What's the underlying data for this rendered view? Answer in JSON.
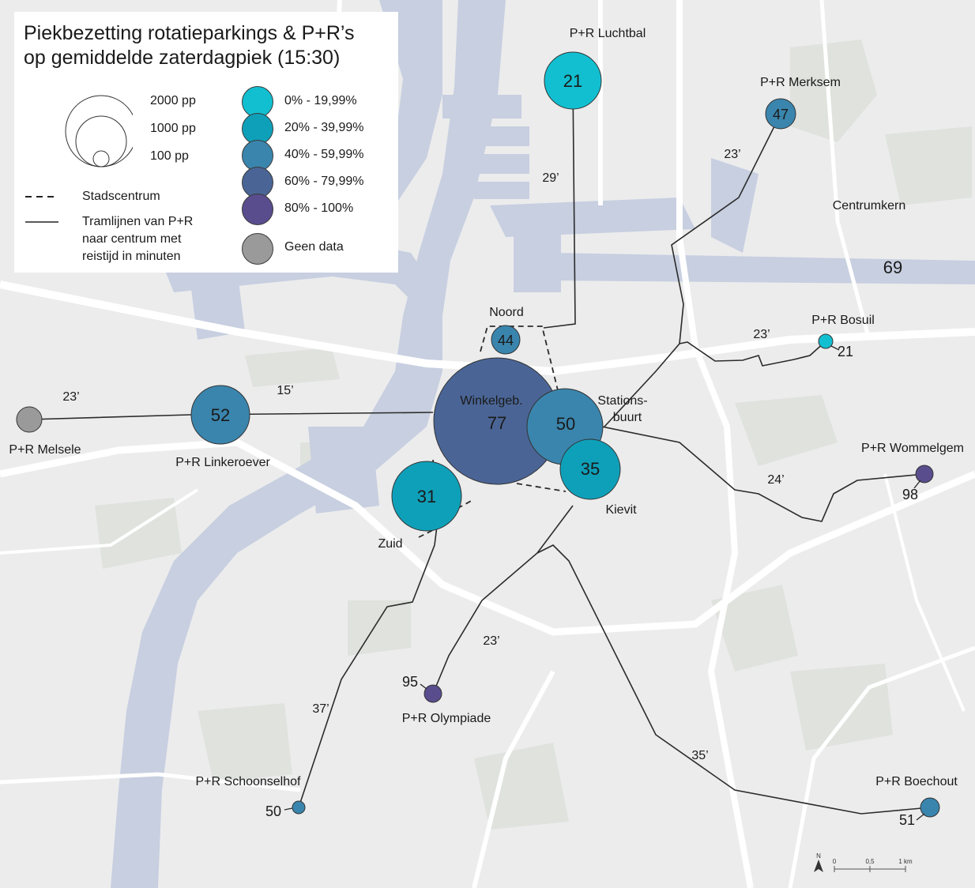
{
  "title": "Piekbezetting rotatieparkings & P+R’s op gemiddelde zaterdagpiek (15:30)",
  "title_line1": "Piekbezetting rotatieparkings & P+R’s",
  "title_line2": "op gemiddelde zaterdagpiek (15:30)",
  "legend": {
    "size_labels": [
      "2000 pp",
      "1000 pp",
      "100 pp"
    ],
    "classes": [
      {
        "label": "0% - 19,99%",
        "color": "#12bfd0"
      },
      {
        "label": "20% - 39,99%",
        "color": "#0fa0b9"
      },
      {
        "label": "40% - 59,99%",
        "color": "#3a85ad"
      },
      {
        "label": "60% - 79,99%",
        "color": "#4a6595"
      },
      {
        "label": "80% - 100%",
        "color": "#5a4d8e"
      },
      {
        "label": "Geen data",
        "color": "#9a9a9a"
      }
    ],
    "line_items": [
      {
        "label": "Stadscentrum",
        "style": "dashed"
      },
      {
        "label": "Tramlijnen van P+R naar centrum met reistijd in minuten",
        "lines": [
          "Tramlijnen van P+R",
          "naar centrum met",
          "reistijd in minuten"
        ],
        "style": "solid"
      }
    ]
  },
  "map_labels": {
    "centrumkern": "Centrumkern",
    "centrumkern_value": "69"
  },
  "parkings": [
    {
      "id": "luchtbal",
      "name": "P+R Luchtbal",
      "value": "21",
      "class": 0,
      "travel_time": "29’"
    },
    {
      "id": "merksem",
      "name": "P+R Merksem",
      "value": "47",
      "class": 2,
      "travel_time": "23’"
    },
    {
      "id": "noord",
      "name": "Noord",
      "value": "44",
      "class": 2
    },
    {
      "id": "bosuil",
      "name": "P+R Bosuil",
      "value": "21",
      "class": 0,
      "travel_time": "23’"
    },
    {
      "id": "winkelgebied",
      "name": "Winkelgeb.",
      "value": "77",
      "class": 3
    },
    {
      "id": "stationsbuurt",
      "name": "Stations-buurt",
      "name_lines": [
        "Stations-",
        "buurt"
      ],
      "value": "50",
      "class": 2
    },
    {
      "id": "kievit",
      "name": "Kievit",
      "value": "35",
      "class": 1
    },
    {
      "id": "zuid",
      "name": "Zuid",
      "value": "31",
      "class": 1
    },
    {
      "id": "linkeroever",
      "name": "P+R Linkeroever",
      "value": "52",
      "class": 2,
      "travel_time": "15’"
    },
    {
      "id": "melsele",
      "name": "P+R Melsele",
      "value": "",
      "class": 5,
      "travel_time": "23’"
    },
    {
      "id": "wommelgem",
      "name": "P+R Wommelgem",
      "value": "98",
      "class": 4,
      "travel_time": "24’"
    },
    {
      "id": "olympiade",
      "name": "P+R Olympiade",
      "value": "95",
      "class": 4,
      "travel_time": "23’"
    },
    {
      "id": "schoonselhof",
      "name": "P+R Schoonselhof",
      "value": "50",
      "class": 2,
      "travel_time": "37’"
    },
    {
      "id": "boechout",
      "name": "P+R Boechout",
      "value": "51",
      "class": 2,
      "travel_time": "35’"
    }
  ],
  "scalebar": {
    "north": "N",
    "ticks": [
      "0",
      "0,5",
      "1 km"
    ]
  }
}
